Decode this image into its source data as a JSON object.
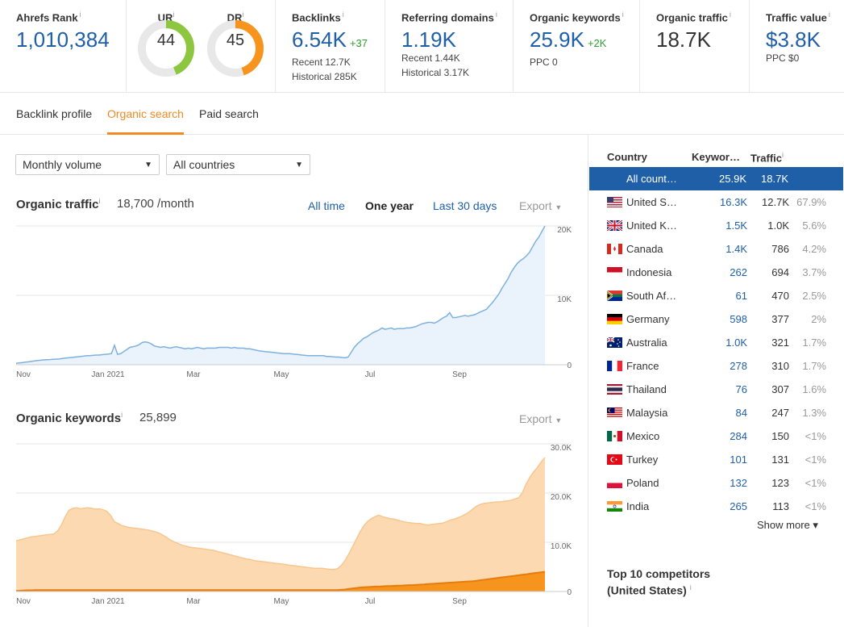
{
  "metrics": {
    "ahrefs_rank": {
      "label": "Ahrefs Rank",
      "info": "i",
      "value": "1,010,384"
    },
    "ur": {
      "label": "UR",
      "info": "i",
      "value": "44",
      "color": "#8dc63f",
      "fraction": 0.44
    },
    "dr": {
      "label": "DR",
      "info": "i",
      "value": "45",
      "color": "#f7941d",
      "fraction": 0.45
    },
    "backlinks": {
      "label": "Backlinks",
      "info": "i",
      "value": "6.54K",
      "delta": "+37",
      "sub1": "Recent 12.7K",
      "sub2": "Historical 285K"
    },
    "referring_domains": {
      "label": "Referring domains",
      "info": "i",
      "value": "1.19K",
      "sub1": "Recent 1.44K",
      "sub2": "Historical 3.17K"
    },
    "organic_keywords": {
      "label": "Organic keywords",
      "info": "i",
      "value": "25.9K",
      "delta": "+2K",
      "sub1": "PPC 0"
    },
    "organic_traffic": {
      "label": "Organic traffic",
      "info": "i",
      "value": "18.7K"
    },
    "traffic_value": {
      "label": "Traffic value",
      "info": "i",
      "value": "$3.8K",
      "sub1": "PPC $0"
    }
  },
  "tabs": [
    {
      "label": "Backlink profile",
      "active": false
    },
    {
      "label": "Organic search",
      "active": true
    },
    {
      "label": "Paid search",
      "active": false
    }
  ],
  "filters": {
    "volume": "Monthly volume",
    "country": "All countries"
  },
  "organic_traffic_section": {
    "title": "Organic traffic",
    "info": "i",
    "value": "18,700 /month",
    "ranges": [
      "All time",
      "One year",
      "Last 30 days"
    ],
    "export": "Export"
  },
  "organic_keywords_section": {
    "title": "Organic keywords",
    "info": "i",
    "value": "25,899",
    "export": "Export"
  },
  "chart_data": [
    {
      "type": "area",
      "title": "Organic traffic",
      "x_ticks": [
        "Nov",
        "Jan 2021",
        "Mar",
        "May",
        "Jul",
        "Sep"
      ],
      "y_ticks": [
        "20K",
        "10K",
        "0"
      ],
      "ylim": [
        0,
        20000
      ],
      "color": "#7eb1dd",
      "series": [
        {
          "values": [
            200,
            250,
            300,
            380,
            420,
            500,
            550,
            600,
            650,
            700,
            720,
            750,
            780,
            800,
            820,
            900,
            950,
            1000,
            1050,
            1100,
            1150,
            1200,
            1250,
            1300,
            1300,
            1350,
            1400,
            1400,
            1450,
            1500,
            1550,
            1600,
            2800,
            1500,
            1600,
            1900,
            2200,
            2500,
            2600,
            2700,
            2900,
            3200,
            3300,
            3200,
            3000,
            2700,
            2600,
            2500,
            2600,
            2500,
            2400,
            2500,
            2600,
            2500,
            2400,
            2300,
            2400,
            2300,
            2400,
            2500,
            2400,
            2300,
            2400,
            2400,
            2400,
            2400,
            2500,
            2500,
            2500,
            2500,
            2400,
            2500,
            2400,
            2400,
            2400,
            2300,
            2300,
            2200,
            2100,
            2000,
            1950,
            1900,
            1850,
            1800,
            1750,
            1700,
            1650,
            1600,
            1600,
            1600,
            1550,
            1500,
            1450,
            1400,
            1350,
            1300,
            1300,
            1300,
            1300,
            1300,
            1300,
            1200,
            1200,
            1150,
            1100,
            1100,
            1050,
            1000,
            1100,
            1800,
            2500,
            3000,
            3400,
            3800,
            4000,
            4300,
            4600,
            4800,
            5000,
            5300,
            5100,
            5200,
            5300,
            5100,
            5200,
            5200,
            5200,
            5300,
            5300,
            5400,
            5500,
            5700,
            5900,
            6000,
            6100,
            6100,
            6000,
            6200,
            6500,
            6800,
            7000,
            7500,
            6800,
            6800,
            6900,
            7000,
            7100,
            7000,
            7100,
            7200,
            7400,
            7600,
            7800,
            8000,
            8500,
            9000,
            9600,
            10200,
            11000,
            11700,
            12400,
            13300,
            14000,
            14600,
            15000,
            15300,
            15700,
            16200,
            17000,
            17800,
            18400,
            19200,
            20000
          ]
        }
      ]
    },
    {
      "type": "area",
      "title": "Organic keywords",
      "x_ticks": [
        "Nov",
        "Jan 2021",
        "Mar",
        "May",
        "Jul",
        "Sep"
      ],
      "y_ticks": [
        "30.0K",
        "20.0K",
        "10.0K",
        "0"
      ],
      "ylim": [
        0,
        30000
      ],
      "color": "#fbd3a5",
      "series": [
        {
          "values": [
            10300,
            10500,
            10700,
            10900,
            11100,
            11200,
            11300,
            11400,
            11500,
            11600,
            11700,
            12300,
            13500,
            15200,
            16500,
            16900,
            17000,
            16800,
            16900,
            17000,
            16900,
            16700,
            16800,
            16600,
            16300,
            15500,
            14200,
            13800,
            13400,
            13200,
            13000,
            12900,
            12800,
            12700,
            12600,
            12500,
            12300,
            12100,
            11800,
            11400,
            10900,
            10400,
            10000,
            9700,
            9400,
            9200,
            9000,
            8900,
            8800,
            8700,
            8600,
            8500,
            8400,
            8200,
            8000,
            7800,
            7600,
            7400,
            7200,
            7000,
            6800,
            6600,
            6500,
            6300,
            6200,
            6100,
            6000,
            5900,
            5800,
            5700,
            5600,
            5500,
            5400,
            5300,
            5200,
            5100,
            5000,
            4900,
            4800,
            4700,
            4700,
            4700,
            4600,
            4500,
            4500,
            4600,
            5200,
            6200,
            7500,
            9000,
            10500,
            12000,
            13300,
            14200,
            14800,
            15200,
            15500,
            15200,
            15000,
            14800,
            14700,
            14500,
            14300,
            14100,
            14000,
            13900,
            13800,
            13800,
            13600,
            13500,
            13600,
            13700,
            13800,
            13900,
            14200,
            14500,
            14700,
            15000,
            15300,
            15700,
            16200,
            16800,
            17400,
            17700,
            17900,
            18000,
            18100,
            18200,
            18200,
            18300,
            18400,
            18500,
            18800,
            19000,
            20000,
            21800,
            23200,
            24300,
            25200,
            26300,
            27200
          ]
        },
        {
          "values": [
            100,
            150,
            200,
            250,
            250,
            300,
            300,
            300,
            300,
            300,
            300,
            300,
            300,
            300,
            300,
            300,
            300,
            300,
            300,
            300,
            300,
            300,
            300,
            300,
            300,
            300,
            300,
            300,
            300,
            300,
            300,
            300,
            300,
            300,
            300,
            300,
            300,
            300,
            300,
            300,
            300,
            300,
            300,
            300,
            300,
            300,
            300,
            300,
            300,
            300,
            300,
            300,
            300,
            300,
            300,
            300,
            300,
            300,
            300,
            300,
            300,
            300,
            300,
            300,
            300,
            300,
            300,
            300,
            300,
            300,
            300,
            300,
            300,
            300,
            300,
            300,
            300,
            300,
            300,
            300,
            300,
            300,
            300,
            300,
            300,
            300,
            350,
            400,
            500,
            600,
            700,
            800,
            850,
            900,
            950,
            1000,
            1000,
            1050,
            1100,
            1100,
            1150,
            1200,
            1200,
            1250,
            1300,
            1300,
            1350,
            1400,
            1450,
            1500,
            1550,
            1600,
            1650,
            1700,
            1750,
            1800,
            1850,
            1900,
            1950,
            2000,
            2050,
            2100,
            2200,
            2300,
            2400,
            2500,
            2600,
            2700,
            2800,
            2900,
            3000,
            3100,
            3200,
            3300,
            3400,
            3500,
            3600,
            3700,
            3800,
            3900,
            4000
          ]
        }
      ]
    }
  ],
  "country_table": {
    "headers": {
      "country": "Country",
      "keywords": "Keywor…",
      "traffic": "Traffic",
      "info": "i"
    },
    "rows": [
      {
        "flag": "none",
        "name": "All count…",
        "keywords": "25.9K",
        "traffic": "18.7K",
        "pct": "",
        "selected": true
      },
      {
        "flag": "us-flag",
        "name": "United S…",
        "keywords": "16.3K",
        "traffic": "12.7K",
        "pct": "67.9%"
      },
      {
        "flag": "uk-flag",
        "name": "United K…",
        "keywords": "1.5K",
        "traffic": "1.0K",
        "pct": "5.6%"
      },
      {
        "flag": "canada-flag",
        "name": "Canada",
        "keywords": "1.4K",
        "traffic": "786",
        "pct": "4.2%"
      },
      {
        "flag": "indonesia-flag",
        "name": "Indonesia",
        "keywords": "262",
        "traffic": "694",
        "pct": "3.7%"
      },
      {
        "flag": "south-africa-flag",
        "name": "South Af…",
        "keywords": "61",
        "traffic": "470",
        "pct": "2.5%"
      },
      {
        "flag": "germany-flag",
        "name": "Germany",
        "keywords": "598",
        "traffic": "377",
        "pct": "2%"
      },
      {
        "flag": "australia-flag",
        "name": "Australia",
        "keywords": "1.0K",
        "traffic": "321",
        "pct": "1.7%"
      },
      {
        "flag": "france-flag",
        "name": "France",
        "keywords": "278",
        "traffic": "310",
        "pct": "1.7%"
      },
      {
        "flag": "thailand-flag",
        "name": "Thailand",
        "keywords": "76",
        "traffic": "307",
        "pct": "1.6%"
      },
      {
        "flag": "malaysia-flag",
        "name": "Malaysia",
        "keywords": "84",
        "traffic": "247",
        "pct": "1.3%"
      },
      {
        "flag": "mexico-flag",
        "name": "Mexico",
        "keywords": "284",
        "traffic": "150",
        "pct": "<1%"
      },
      {
        "flag": "turkey-flag",
        "name": "Turkey",
        "keywords": "101",
        "traffic": "131",
        "pct": "<1%"
      },
      {
        "flag": "poland-flag",
        "name": "Poland",
        "keywords": "132",
        "traffic": "123",
        "pct": "<1%"
      },
      {
        "flag": "india-flag",
        "name": "India",
        "keywords": "265",
        "traffic": "113",
        "pct": "<1%"
      }
    ],
    "show_more": "Show more ▾"
  },
  "competitors": {
    "title_line1": "Top 10 competitors",
    "title_line2": "(United States)",
    "info": "i"
  }
}
